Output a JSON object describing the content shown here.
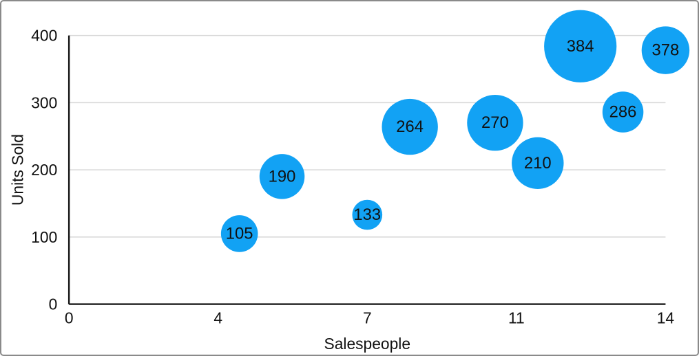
{
  "figure": {
    "background_color": "#ffffff",
    "border_color": "#8a8a8a"
  },
  "chart_data": {
    "type": "bubble",
    "title": "",
    "xlabel": "Salespeople",
    "ylabel": "Units Sold",
    "xlim": [
      0,
      14
    ],
    "ylim": [
      0,
      400
    ],
    "grid": "horizontal",
    "legend": "none",
    "axis_color": "#1a1a1a",
    "gridline_color": "#d7d7d7",
    "bubble_color": "#12a2f4",
    "bubble_label_color": "#000000",
    "x_ticks": [
      {
        "value": 0,
        "label": "0"
      },
      {
        "value": 3.5,
        "label": "4"
      },
      {
        "value": 7,
        "label": "7"
      },
      {
        "value": 10.5,
        "label": "11"
      },
      {
        "value": 14,
        "label": "14"
      }
    ],
    "y_ticks": [
      {
        "value": 0,
        "label": "0"
      },
      {
        "value": 100,
        "label": "100"
      },
      {
        "value": 200,
        "label": "200"
      },
      {
        "value": 300,
        "label": "300"
      },
      {
        "value": 400,
        "label": "400"
      }
    ],
    "points": [
      {
        "x": 4,
        "y": 105,
        "label": "105",
        "radius_px": 27
      },
      {
        "x": 5,
        "y": 190,
        "label": "190",
        "radius_px": 33
      },
      {
        "x": 7,
        "y": 133,
        "label": "133",
        "radius_px": 22
      },
      {
        "x": 8,
        "y": 264,
        "label": "264",
        "radius_px": 41
      },
      {
        "x": 10,
        "y": 270,
        "label": "270",
        "radius_px": 41
      },
      {
        "x": 11,
        "y": 210,
        "label": "210",
        "radius_px": 38
      },
      {
        "x": 12,
        "y": 384,
        "label": "384",
        "radius_px": 53
      },
      {
        "x": 13,
        "y": 286,
        "label": "286",
        "radius_px": 30
      },
      {
        "x": 14,
        "y": 378,
        "label": "378",
        "radius_px": 35
      }
    ]
  }
}
